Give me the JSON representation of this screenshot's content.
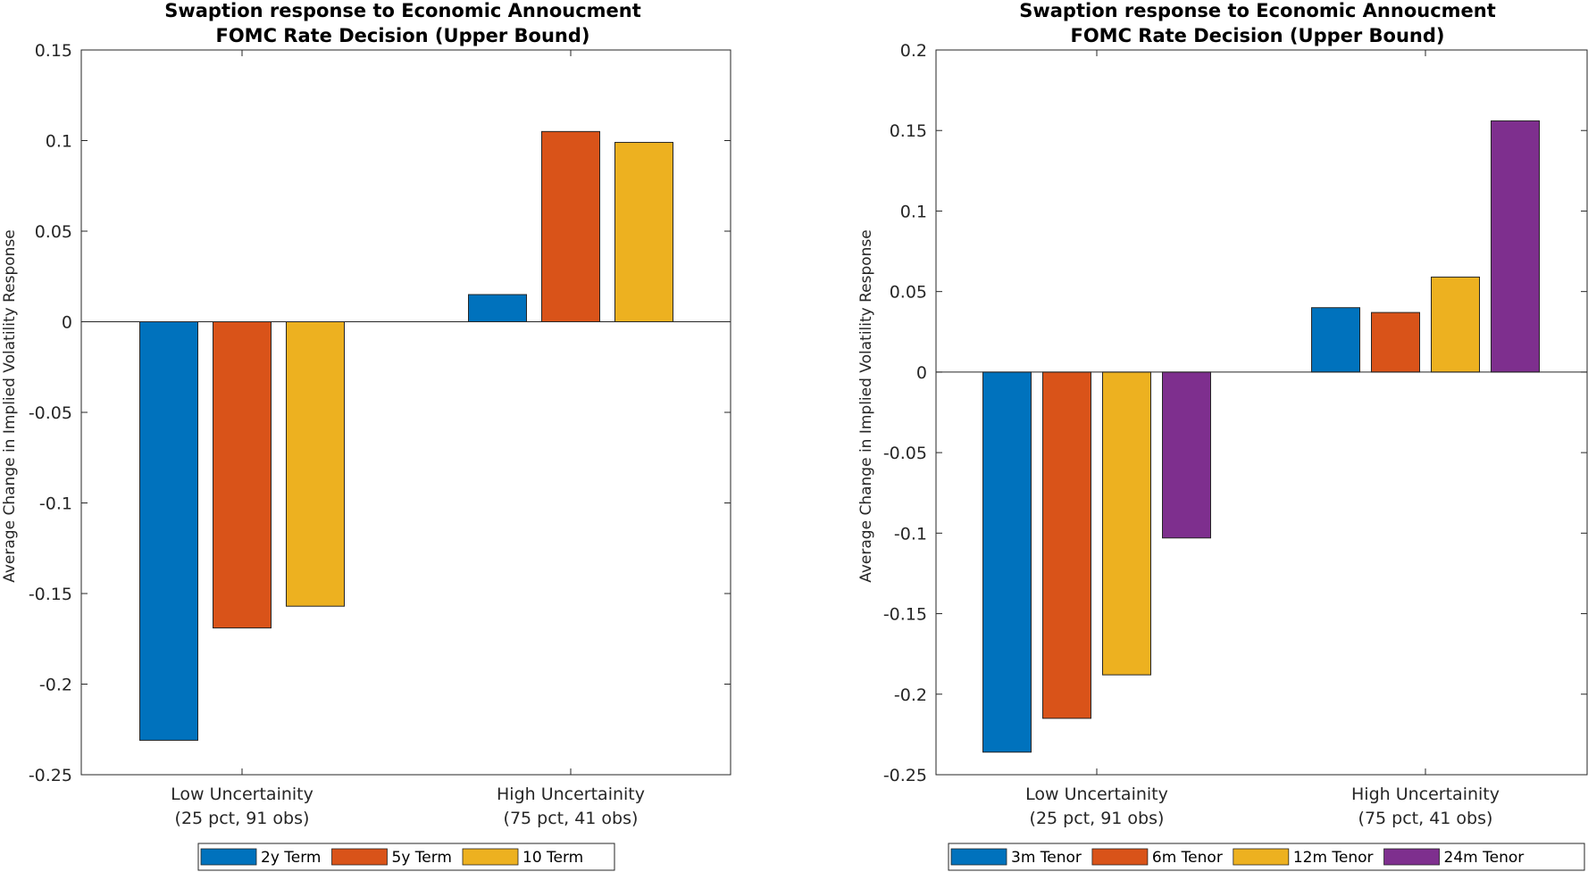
{
  "chart_data": [
    {
      "type": "bar",
      "title": [
        "Swaption response to Economic Annoucment",
        "FOMC Rate Decision (Upper Bound)"
      ],
      "ylabel": "Average Change in Implied Volatility Response",
      "xlabel": "",
      "ylim": [
        -0.25,
        0.15
      ],
      "yticks": [
        -0.25,
        -0.2,
        -0.15,
        -0.1,
        -0.05,
        0,
        0.05,
        0.1,
        0.15
      ],
      "ytick_labels": [
        "-0.25",
        "-0.2",
        "-0.15",
        "-0.1",
        "-0.05",
        "0",
        "0.05",
        "0.1",
        "0.15"
      ],
      "categories": [
        [
          "Low Uncertainity",
          "(25 pct, 91 obs)"
        ],
        [
          "High Uncertainity",
          "(75 pct, 41 obs)"
        ]
      ],
      "series": [
        {
          "name": "2y Term",
          "color": "#0072BD",
          "values": [
            -0.231,
            0.015
          ]
        },
        {
          "name": "5y Term",
          "color": "#D95319",
          "values": [
            -0.169,
            0.105
          ]
        },
        {
          "name": "10 Term",
          "color": "#EDB120",
          "values": [
            -0.157,
            0.099
          ]
        }
      ],
      "legend": "bottom-center",
      "grid": false
    },
    {
      "type": "bar",
      "title": [
        "Swaption response to Economic Annoucment",
        "FOMC Rate Decision (Upper Bound)"
      ],
      "ylabel": "Average Change in Implied Volatility Response",
      "xlabel": "",
      "ylim": [
        -0.25,
        0.2
      ],
      "yticks": [
        -0.25,
        -0.2,
        -0.15,
        -0.1,
        -0.05,
        0,
        0.05,
        0.1,
        0.15,
        0.2
      ],
      "ytick_labels": [
        "-0.25",
        "-0.2",
        "-0.15",
        "-0.1",
        "-0.05",
        "0",
        "0.05",
        "0.1",
        "0.15",
        "0.2"
      ],
      "categories": [
        [
          "Low Uncertainity",
          "(25 pct, 91 obs)"
        ],
        [
          "High Uncertainity",
          "(75 pct, 41 obs)"
        ]
      ],
      "series": [
        {
          "name": "3m Tenor",
          "color": "#0072BD",
          "values": [
            -0.236,
            0.04
          ]
        },
        {
          "name": "6m Tenor",
          "color": "#D95319",
          "values": [
            -0.215,
            0.037
          ]
        },
        {
          "name": "12m Tenor",
          "color": "#EDB120",
          "values": [
            -0.188,
            0.059
          ]
        },
        {
          "name": "24m Tenor",
          "color": "#7E2F8E",
          "values": [
            -0.103,
            0.156
          ]
        }
      ],
      "legend": "bottom-center",
      "grid": false
    }
  ]
}
